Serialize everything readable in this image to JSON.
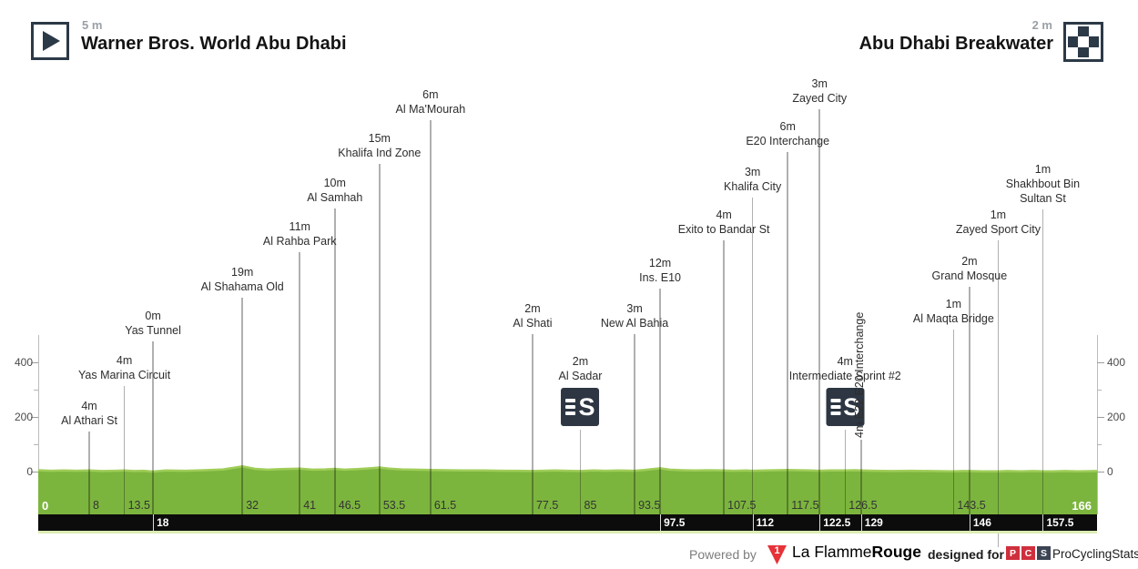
{
  "header": {
    "start": {
      "elevation": "5 m",
      "name": "Warner Bros. World Abu Dhabi"
    },
    "finish": {
      "elevation": "2 m",
      "name": "Abu Dhabi Breakwater"
    }
  },
  "chart_data": {
    "type": "area",
    "title": "Stage elevation profile",
    "x_unit": "km",
    "y_unit": "m",
    "xlim": [
      0,
      166
    ],
    "ylim": [
      0,
      500
    ],
    "y_axis": {
      "major_ticks": [
        400,
        200,
        0
      ],
      "minor_ticks": [
        300,
        100
      ],
      "label_side": "both"
    },
    "sprint_icon_letter": "S",
    "waypoints": [
      {
        "km": 8,
        "label_lines": [
          "4m",
          "Al Athari St"
        ],
        "line_top": 474
      },
      {
        "km": 13.5,
        "label_lines": [
          "4m",
          "Yas Marina Circuit"
        ],
        "line_top": 424
      },
      {
        "km": 18,
        "label_lines": [
          "0m",
          "Yas Tunnel"
        ],
        "line_top": 375
      },
      {
        "km": 32,
        "label_lines": [
          "19m",
          "Al Shahama Old"
        ],
        "line_top": 327
      },
      {
        "km": 41,
        "label_lines": [
          "11m",
          "Al Rahba Park"
        ],
        "line_top": 277
      },
      {
        "km": 46.5,
        "label_lines": [
          "10m",
          "Al Samhah"
        ],
        "line_top": 229
      },
      {
        "km": 53.5,
        "label_lines": [
          "15m",
          "Khalifa Ind Zone"
        ],
        "line_top": 180
      },
      {
        "km": 61.5,
        "label_lines": [
          "6m",
          "Al Ma'Mourah"
        ],
        "line_top": 132
      },
      {
        "km": 77.5,
        "label_lines": [
          "2m",
          "Al Shati"
        ],
        "line_top": 367
      },
      {
        "km": 85,
        "label_lines": [
          "2m",
          "Al Sadar"
        ],
        "line_top": 472,
        "icon": "sprint"
      },
      {
        "km": 93.5,
        "label_lines": [
          "3m",
          "New Al Bahia"
        ],
        "line_top": 367
      },
      {
        "km": 97.5,
        "label_lines": [
          "12m",
          "Ins. E10"
        ],
        "line_top": 317
      },
      {
        "km": 107.5,
        "label_lines": [
          "4m",
          "Exito to Bandar St"
        ],
        "line_top": 264
      },
      {
        "km": 112,
        "label_lines": [
          "3m",
          "Khalifa City"
        ],
        "line_top": 217
      },
      {
        "km": 117.5,
        "label_lines": [
          "6m",
          "E20 Interchange"
        ],
        "line_top": 167
      },
      {
        "km": 122.5,
        "label_lines": [
          "3m",
          "Zayed City"
        ],
        "line_top": 120
      },
      {
        "km": 126.5,
        "label_lines": [
          "4m",
          "Intermediate Sprint #2"
        ],
        "line_top": 472,
        "icon": "sprint"
      },
      {
        "km": 129,
        "label": "4m E22 E20 Interchange",
        "line_top": 483,
        "vertical": true
      },
      {
        "km": 143.5,
        "label_lines": [
          "1m",
          "Al Maqta Bridge"
        ],
        "line_top": 362
      },
      {
        "km": 146,
        "label_lines": [
          "2m",
          "Grand Mosque"
        ],
        "line_top": 315
      },
      {
        "km": 150.5,
        "label_lines": [
          "1m",
          "Zayed Sport City"
        ],
        "line_top": 264,
        "line_bottom": 601
      },
      {
        "km": 157.5,
        "label_lines": [
          "1m",
          "Shakhbout Bin",
          "Sultan St"
        ],
        "line_top": 230
      }
    ],
    "x_ticks_green": [
      {
        "km": 0,
        "label": "0",
        "emph": true
      },
      {
        "km": 8,
        "label": "8"
      },
      {
        "km": 13.5,
        "label": "13.5"
      },
      {
        "km": 32,
        "label": "32"
      },
      {
        "km": 41,
        "label": "41"
      },
      {
        "km": 46.5,
        "label": "46.5"
      },
      {
        "km": 53.5,
        "label": "53.5"
      },
      {
        "km": 61.5,
        "label": "61.5"
      },
      {
        "km": 77.5,
        "label": "77.5"
      },
      {
        "km": 85,
        "label": "85"
      },
      {
        "km": 93.5,
        "label": "93.5"
      },
      {
        "km": 107.5,
        "label": "107.5"
      },
      {
        "km": 117.5,
        "label": "117.5"
      },
      {
        "km": 126.5,
        "label": "126.5"
      },
      {
        "km": 143.5,
        "label": "143.5"
      },
      {
        "km": 166,
        "label": "166",
        "emph": true,
        "align": "right"
      }
    ],
    "x_ticks_black": [
      {
        "km": 18,
        "label": "18"
      },
      {
        "km": 97.5,
        "label": "97.5"
      },
      {
        "km": 112,
        "label": "112"
      },
      {
        "km": 122.5,
        "label": "122.5"
      },
      {
        "km": 129,
        "label": "129"
      },
      {
        "km": 146,
        "label": "146"
      },
      {
        "km": 157.5,
        "label": "157.5"
      }
    ],
    "profile_points": [
      [
        0,
        5
      ],
      [
        2,
        3
      ],
      [
        4,
        4
      ],
      [
        6,
        3
      ],
      [
        8,
        4
      ],
      [
        10,
        2
      ],
      [
        12,
        3
      ],
      [
        13.5,
        4
      ],
      [
        15,
        2
      ],
      [
        16.5,
        3
      ],
      [
        18,
        0
      ],
      [
        20,
        4
      ],
      [
        23,
        3
      ],
      [
        26,
        5
      ],
      [
        29,
        8
      ],
      [
        32,
        19
      ],
      [
        34,
        10
      ],
      [
        36,
        7
      ],
      [
        38,
        9
      ],
      [
        41,
        11
      ],
      [
        43,
        7
      ],
      [
        45,
        8
      ],
      [
        46.5,
        10
      ],
      [
        48,
        7
      ],
      [
        50,
        9
      ],
      [
        52,
        12
      ],
      [
        53.5,
        15
      ],
      [
        55,
        11
      ],
      [
        57,
        8
      ],
      [
        59,
        7
      ],
      [
        61.5,
        6
      ],
      [
        64,
        5
      ],
      [
        67,
        4
      ],
      [
        70,
        4
      ],
      [
        73,
        3
      ],
      [
        75,
        3
      ],
      [
        77.5,
        2
      ],
      [
        79,
        3
      ],
      [
        81,
        4
      ],
      [
        83,
        3
      ],
      [
        85,
        2
      ],
      [
        87,
        4
      ],
      [
        89,
        3
      ],
      [
        91,
        4
      ],
      [
        93.5,
        3
      ],
      [
        95,
        6
      ],
      [
        97.5,
        12
      ],
      [
        99,
        7
      ],
      [
        101,
        5
      ],
      [
        103,
        4
      ],
      [
        105,
        5
      ],
      [
        107.5,
        4
      ],
      [
        109,
        3
      ],
      [
        111,
        4
      ],
      [
        112,
        3
      ],
      [
        114,
        4
      ],
      [
        116,
        5
      ],
      [
        117.5,
        6
      ],
      [
        119,
        5
      ],
      [
        121,
        4
      ],
      [
        122.5,
        3
      ],
      [
        124,
        4
      ],
      [
        126.5,
        4
      ],
      [
        128,
        5
      ],
      [
        129,
        4
      ],
      [
        131,
        3
      ],
      [
        134,
        2
      ],
      [
        137,
        3
      ],
      [
        140,
        2
      ],
      [
        143.5,
        1
      ],
      [
        145,
        2
      ],
      [
        146,
        2
      ],
      [
        148,
        1
      ],
      [
        150.5,
        1
      ],
      [
        152,
        2
      ],
      [
        154,
        1
      ],
      [
        156,
        2
      ],
      [
        157.5,
        1
      ],
      [
        159,
        1
      ],
      [
        161,
        2
      ],
      [
        163,
        1
      ],
      [
        166,
        2
      ]
    ]
  },
  "footer": {
    "powered_by": "Powered by",
    "lfr_logo_digit": "1",
    "lfr_name_regular": "La Flamme",
    "lfr_name_bold": "Rouge",
    "designed_for": "designed for",
    "pcs_letters": [
      "P",
      "C",
      "S"
    ],
    "pcs_name": "ProCyclingStats"
  },
  "colors": {
    "profile_green": "#7cb53e",
    "profile_edge_green": "#9fcd58",
    "band_black": "#0c0c0c",
    "band_light_green": "#dcecb4",
    "gridline_gray": "#b0b0b0",
    "icon_navy": "#2c3947",
    "sprint_icon_bg": "#2d3642",
    "lfr_red": "#e63238",
    "pcs_red": "#cf2f3d",
    "pcs_navy": "#3c4454"
  }
}
